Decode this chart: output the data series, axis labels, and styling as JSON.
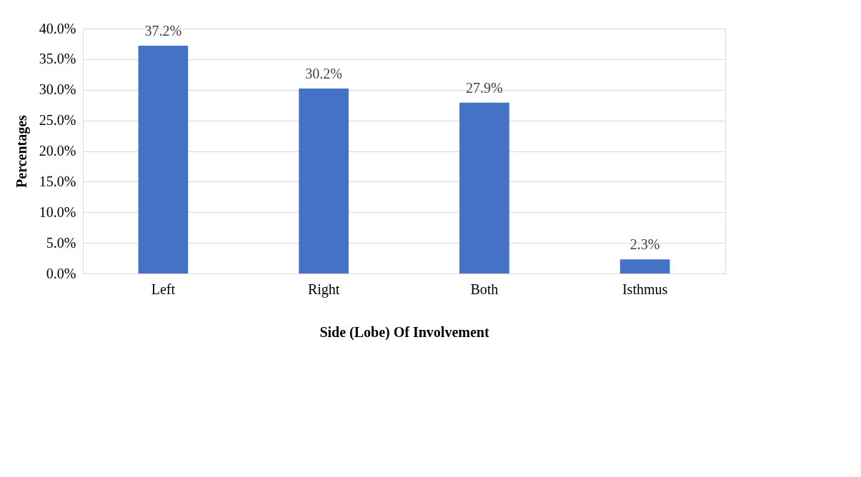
{
  "chart_data": {
    "type": "bar",
    "xlabel": "Side (Lobe) Of Involvement",
    "ylabel": "Percentages",
    "categories": [
      "Left",
      "Right",
      "Both",
      "Isthmus"
    ],
    "values": [
      37.2,
      30.2,
      27.9,
      2.3
    ],
    "color": "#4472c4",
    "value_labels": [
      "37.2%",
      "30.2%",
      "27.9%",
      "2.3%"
    ],
    "ylim": [
      0,
      40
    ],
    "yticks": [
      {
        "value": 0,
        "label": "0.0%"
      },
      {
        "value": 5,
        "label": "5.0%"
      },
      {
        "value": 10,
        "label": "10.0%"
      },
      {
        "value": 15,
        "label": "15.0%"
      },
      {
        "value": 20,
        "label": "20.0%"
      },
      {
        "value": 25,
        "label": "25.0%"
      },
      {
        "value": 30,
        "label": "30.0%"
      },
      {
        "value": 35,
        "label": "35.0%"
      },
      {
        "value": 40,
        "label": "40.0%"
      }
    ],
    "grid": "y"
  }
}
